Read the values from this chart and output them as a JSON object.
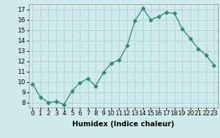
{
  "x": [
    0,
    1,
    2,
    3,
    4,
    5,
    6,
    7,
    8,
    9,
    10,
    11,
    12,
    13,
    14,
    15,
    16,
    17,
    18,
    19,
    20,
    21,
    22,
    23
  ],
  "y": [
    9.8,
    8.5,
    8.0,
    8.1,
    7.8,
    9.1,
    9.9,
    10.3,
    9.6,
    10.9,
    11.8,
    12.1,
    13.5,
    15.9,
    17.1,
    16.0,
    16.3,
    16.7,
    16.6,
    15.1,
    14.2,
    13.2,
    12.6,
    11.6
  ],
  "line_color": "#2e8b7a",
  "marker": "D",
  "marker_size": 2.5,
  "line_width": 1.0,
  "bg_color": "#ceeaea",
  "grid_color": "#aacfcf",
  "xlabel": "Humidex (Indice chaleur)",
  "ylim": [
    7.5,
    17.5
  ],
  "xlim": [
    -0.5,
    23.5
  ],
  "yticks": [
    8,
    9,
    10,
    11,
    12,
    13,
    14,
    15,
    16,
    17
  ],
  "xticks": [
    0,
    1,
    2,
    3,
    4,
    5,
    6,
    7,
    8,
    9,
    10,
    11,
    12,
    13,
    14,
    15,
    16,
    17,
    18,
    19,
    20,
    21,
    22,
    23
  ],
  "xtick_labels": [
    "0",
    "1",
    "2",
    "3",
    "4",
    "5",
    "6",
    "7",
    "8",
    "9",
    "10",
    "11",
    "12",
    "13",
    "14",
    "15",
    "16",
    "17",
    "18",
    "19",
    "20",
    "21",
    "22",
    "23"
  ],
  "tick_fontsize": 6.5,
  "xlabel_fontsize": 7.5
}
